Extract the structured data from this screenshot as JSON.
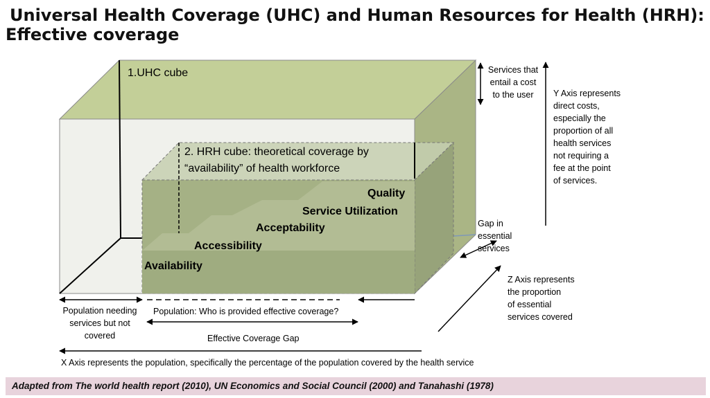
{
  "title": {
    "line1": "Universal Health Coverage (UHC) and Human Resources for Health (HRH):",
    "line2": "Effective coverage"
  },
  "diagram": {
    "uhc_cube_label": "1.UHC cube",
    "hrh_cube_label_line1": "2. HRH cube: theoretical coverage by",
    "hrh_cube_label_line2": "“availability” of health workforce",
    "steps": {
      "availability": "Availability",
      "accessibility": "Accessibility",
      "acceptability": "Acceptability",
      "service_utilization": "Service Utilization",
      "quality": "Quality"
    },
    "services_cost": [
      "Services that",
      "entail a cost",
      "to the user"
    ],
    "y_axis": [
      "Y Axis represents",
      "direct costs,",
      "especially the",
      "proportion of all",
      "health services",
      "not requiring a",
      "fee at the point",
      "of services."
    ],
    "gap_essential": [
      "Gap in",
      "essential",
      "services"
    ],
    "z_axis": [
      "Z Axis represents",
      "the proportion",
      "of essential",
      "services covered"
    ],
    "population_not_covered": [
      "Population needing",
      "services but not",
      "covered"
    ],
    "population_effective": "Population: Who is provided effective coverage?",
    "effective_gap": "Effective Coverage Gap",
    "x_axis": "X Axis represents the population, specifically the percentage of the population covered by the health service"
  },
  "colors": {
    "uhc_top": "#c3cf98",
    "uhc_side": "#aab585",
    "uhc_front": "#f0f1ec",
    "hrh_front": "#a5b185",
    "hrh_side": "#97a37a",
    "hrh_top": "#c6cfb0",
    "footer_bg": "#e8d3dc"
  },
  "footer": "Adapted from The world health report (2010), UN Economics and Social Council (2000) and Tanahashi (1978)"
}
